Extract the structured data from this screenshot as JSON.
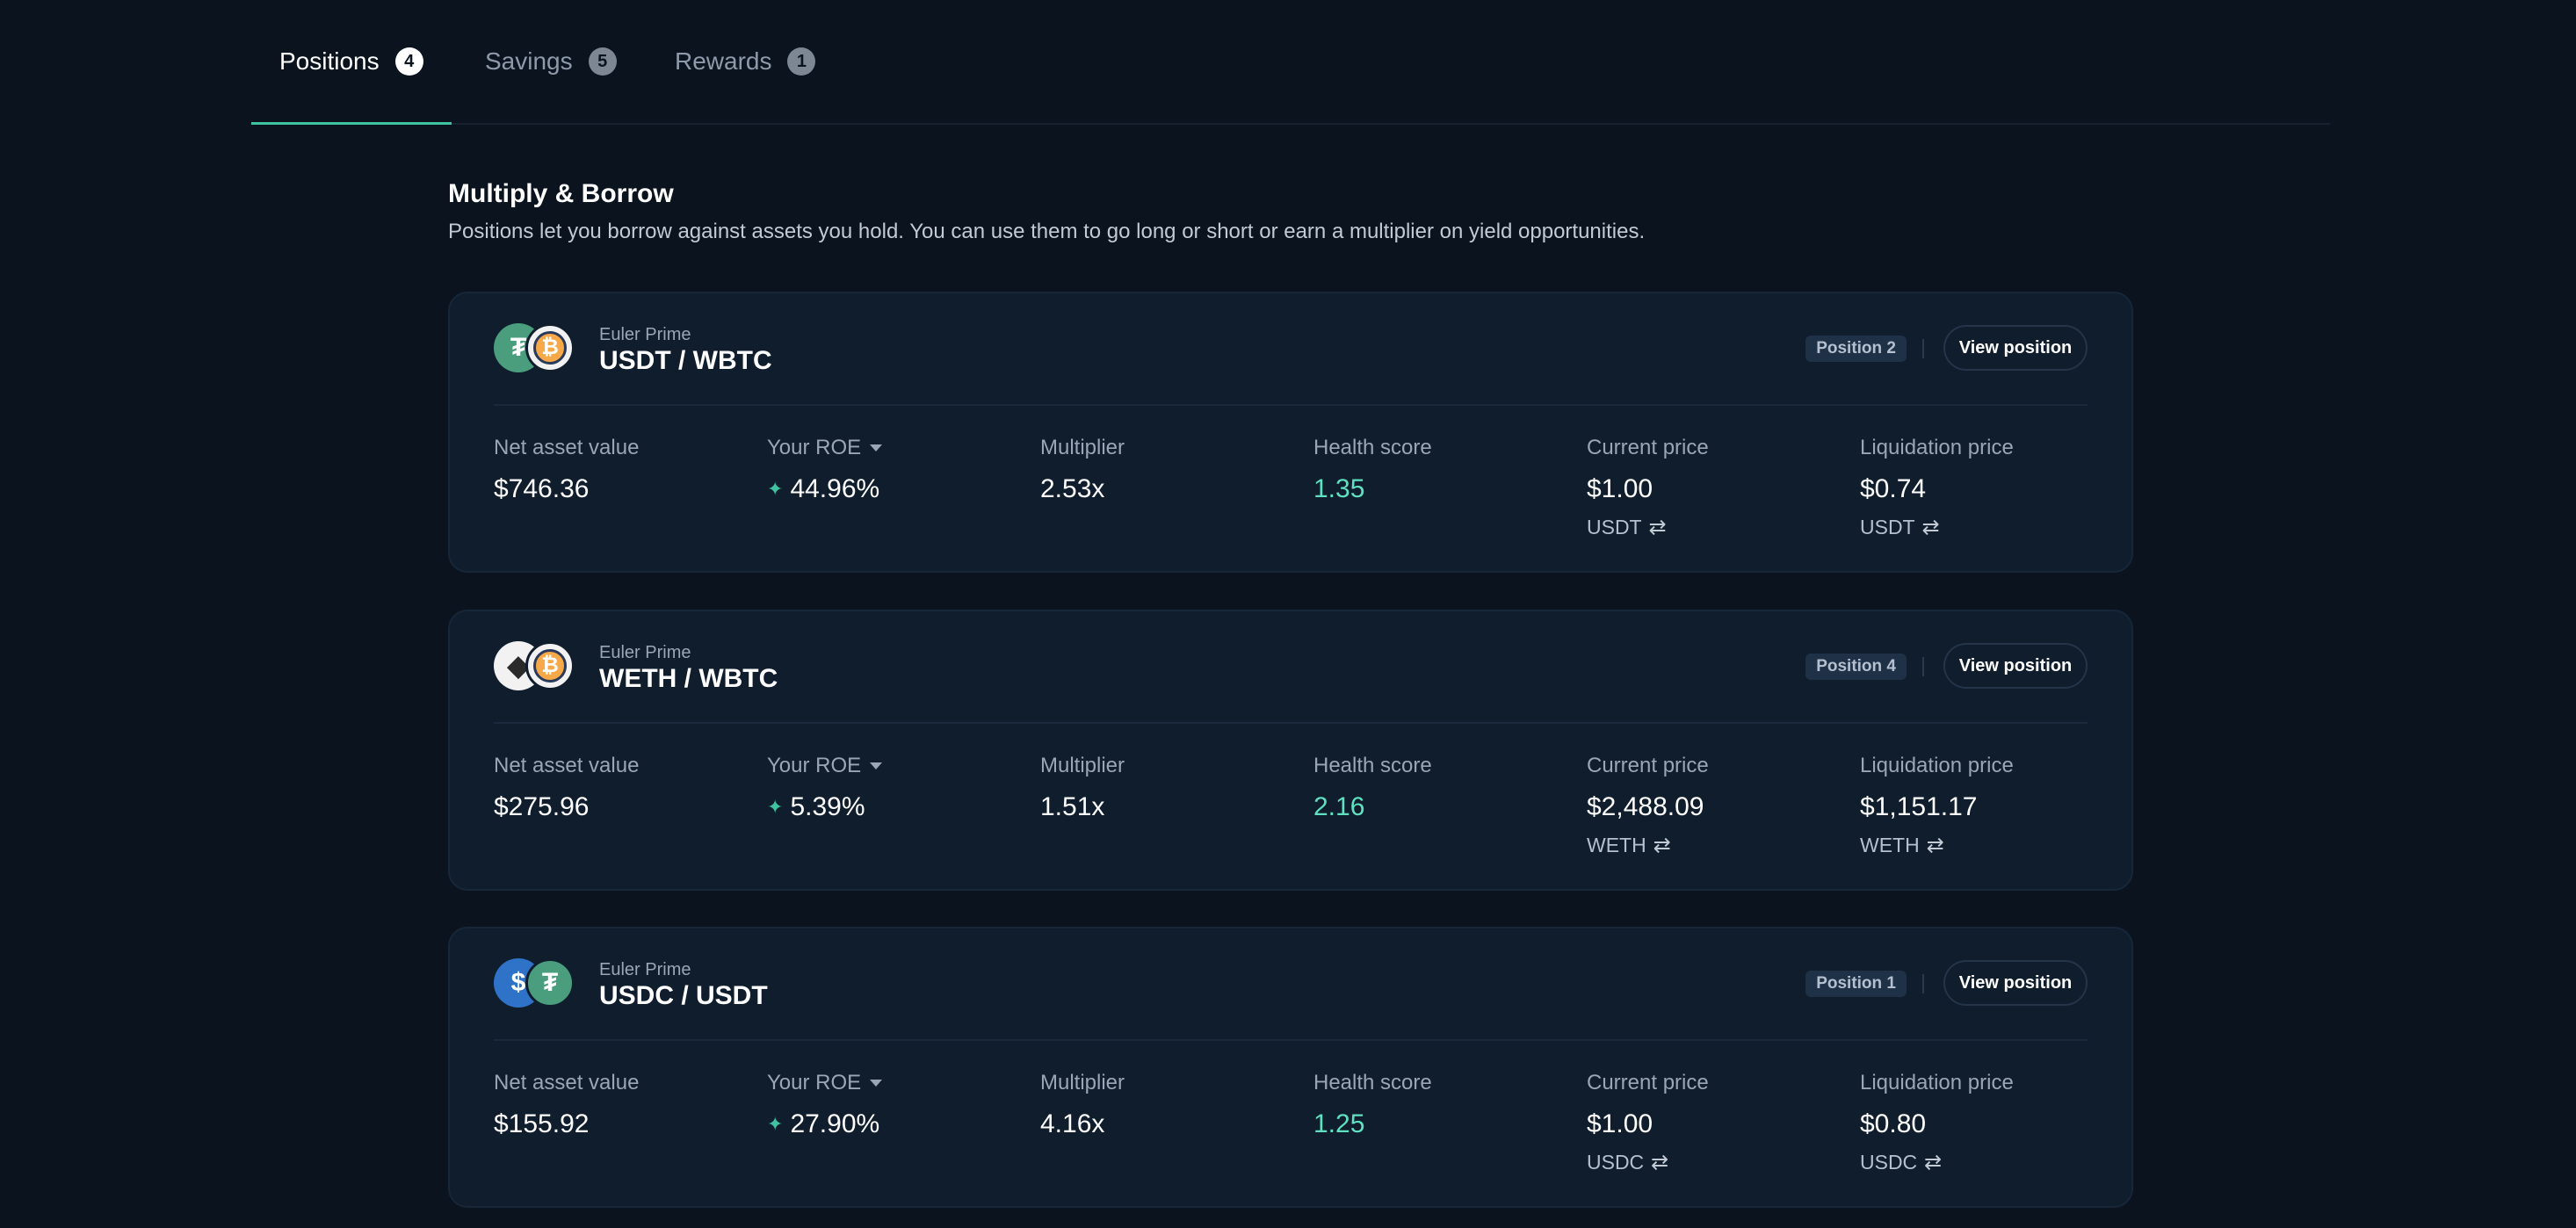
{
  "tabs": [
    {
      "label": "Positions",
      "count": "4"
    },
    {
      "label": "Savings",
      "count": "5"
    },
    {
      "label": "Rewards",
      "count": "1"
    }
  ],
  "section": {
    "title": "Multiply & Borrow",
    "description": "Positions let you borrow against assets you hold. You can use them to go long or short or earn a multiplier on yield opportunities."
  },
  "labels": {
    "net_asset_value": "Net asset value",
    "your_roe": "Your ROE",
    "multiplier": "Multiplier",
    "health_score": "Health score",
    "current_price": "Current price",
    "liquidation_price": "Liquidation price",
    "view_position": "View position"
  },
  "positions": [
    {
      "vault": "Euler Prime",
      "pair": "USDT / WBTC",
      "badge": "Position 2",
      "net_asset_value": "$746.36",
      "roe": "44.96%",
      "multiplier": "2.53x",
      "health_score": "1.35",
      "current_price": "$1.00",
      "current_price_unit": "USDT",
      "liquidation_price": "$0.74",
      "liquidation_price_unit": "USDT"
    },
    {
      "vault": "Euler Prime",
      "pair": "WETH / WBTC",
      "badge": "Position 4",
      "net_asset_value": "$275.96",
      "roe": "5.39%",
      "multiplier": "1.51x",
      "health_score": "2.16",
      "current_price": "$2,488.09",
      "current_price_unit": "WETH",
      "liquidation_price": "$1,151.17",
      "liquidation_price_unit": "WETH"
    },
    {
      "vault": "Euler Prime",
      "pair": "USDC / USDT",
      "badge": "Position 1",
      "net_asset_value": "$155.92",
      "roe": "27.90%",
      "multiplier": "4.16x",
      "health_score": "1.25",
      "current_price": "$1.00",
      "current_price_unit": "USDC",
      "liquidation_price": "$0.80",
      "liquidation_price_unit": "USDC"
    }
  ],
  "colors": {
    "background": "#0a131e",
    "card": "#0f1d2d",
    "accent": "#3ec2a0",
    "health": "#5fe0c0"
  },
  "icons": [
    "usdt-icon",
    "wbtc-icon",
    "weth-icon",
    "usdc-icon",
    "sparkle-icon",
    "swap-icon",
    "caret-down-icon"
  ]
}
